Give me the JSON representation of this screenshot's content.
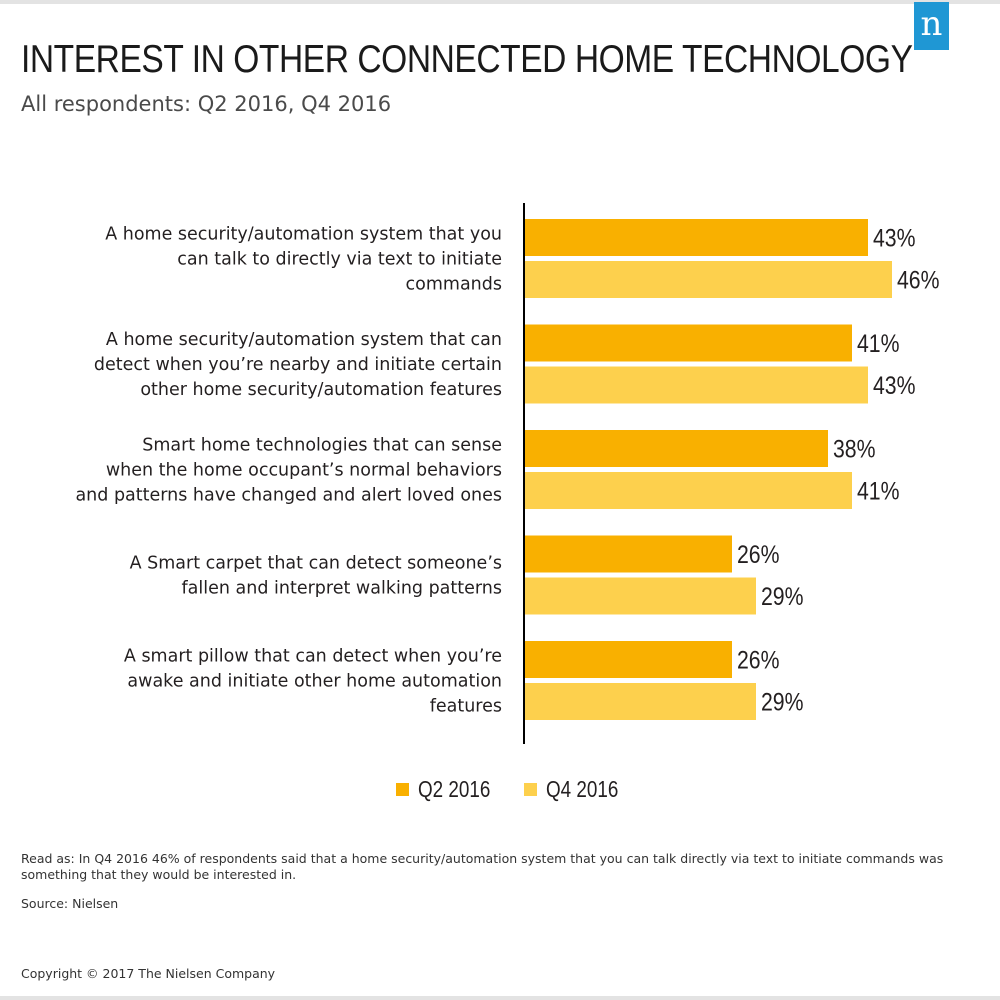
{
  "header": {
    "title": "INTEREST IN OTHER CONNECTED HOME TECHNOLOGY",
    "subtitle": "All respondents: Q2 2016, Q4 2016",
    "logo_letter": "n"
  },
  "chart_data": {
    "type": "bar",
    "orientation": "horizontal",
    "title": "INTEREST IN OTHER CONNECTED HOME TECHNOLOGY",
    "subtitle": "All respondents: Q2 2016, Q4 2016",
    "xlim": [
      0,
      50
    ],
    "categories": [
      [
        "A home security/automation system that you",
        "can talk to directly via text to initiate",
        "commands"
      ],
      [
        "A home security/automation system that can",
        "detect when you’re nearby and initiate certain",
        "other home security/automation features"
      ],
      [
        "Smart home technologies that can sense",
        "when the home occupant’s normal behaviors",
        "and patterns have changed and alert loved ones"
      ],
      [
        "A Smart carpet that can detect someone’s",
        "fallen and interpret walking patterns"
      ],
      [
        "A smart pillow that can detect when you’re",
        "awake and initiate other home automation",
        "features"
      ]
    ],
    "series": [
      {
        "name": "Q2 2016",
        "color": "#f9b000",
        "values": [
          43,
          41,
          38,
          26,
          26
        ],
        "labels": [
          "43%",
          "41%",
          "38%",
          "26%",
          "26%"
        ]
      },
      {
        "name": "Q4 2016",
        "color": "#fdd04d",
        "values": [
          46,
          43,
          41,
          29,
          29
        ],
        "labels": [
          "46%",
          "43%",
          "41%",
          "29%",
          "29%"
        ]
      }
    ],
    "legend_position": "bottom-center"
  },
  "legend": {
    "items": [
      {
        "label": "Q2 2016"
      },
      {
        "label": "Q4 2016"
      }
    ]
  },
  "footer": {
    "note": "Read as: In Q4 2016 46% of respondents said that a home security/automation system that you can talk directly via text to initiate commands was something that they would be interested in.",
    "source": "Source: Nielsen",
    "copyright": "Copyright © 2017 The Nielsen Company"
  },
  "colors": {
    "q2": "#f9b000",
    "q4": "#fdd04d",
    "brand": "#1f97d4"
  }
}
